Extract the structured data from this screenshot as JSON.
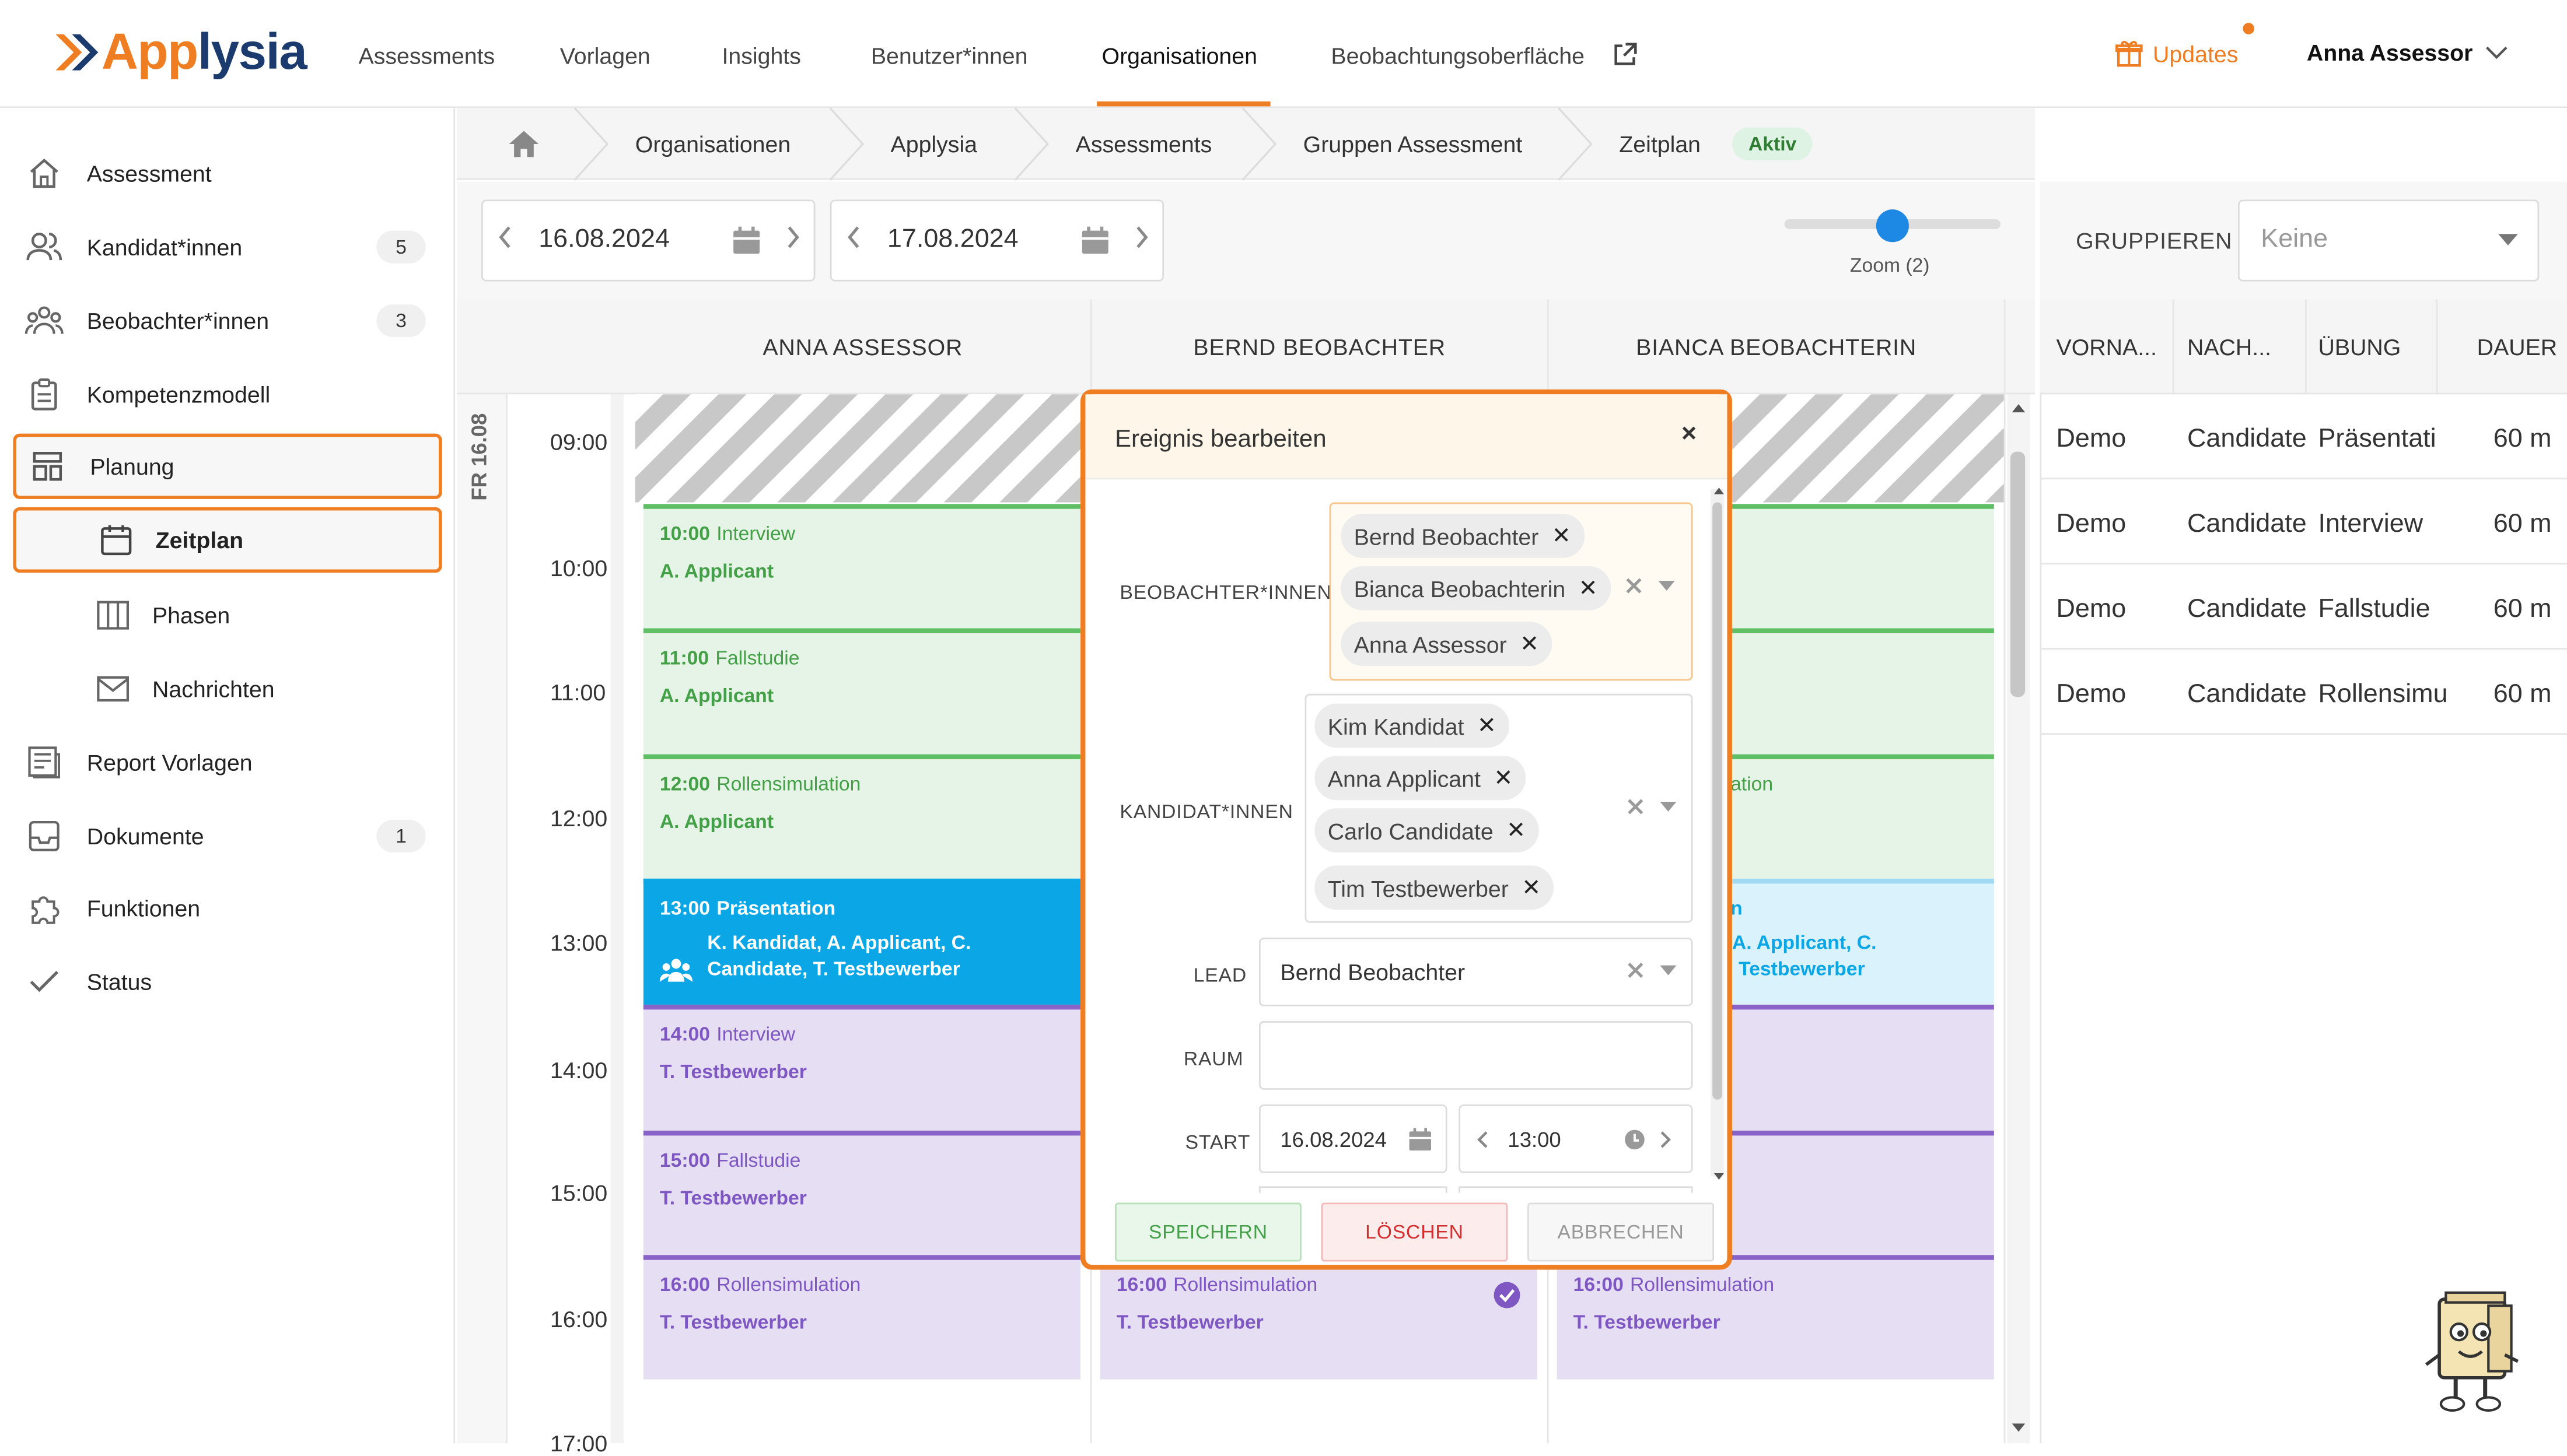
{
  "app": {
    "logo_text_a": "App",
    "logo_text_b": "lysia"
  },
  "topnav": {
    "items": [
      "Assessments",
      "Vorlagen",
      "Insights",
      "Benutzer*innen",
      "Organisationen",
      "Beobachtungsoberfläche"
    ],
    "active": "Organisationen",
    "updates_label": "Updates",
    "user_name": "Anna Assessor"
  },
  "sidebar": {
    "items": [
      {
        "label": "Assessment",
        "icon": "home-icon"
      },
      {
        "label": "Kandidat*innen",
        "icon": "users-icon",
        "badge": "5"
      },
      {
        "label": "Beobachter*innen",
        "icon": "group-icon",
        "badge": "3"
      },
      {
        "label": "Kompetenzmodell",
        "icon": "clipboard-icon"
      },
      {
        "label": "Planung",
        "icon": "layout-icon",
        "highlighted": true
      },
      {
        "label": "Zeitplan",
        "icon": "calendar-icon",
        "highlighted": true,
        "sub": true
      },
      {
        "label": "Phasen",
        "icon": "columns-icon",
        "sub": true
      },
      {
        "label": "Nachrichten",
        "icon": "mail-icon",
        "sub": true
      },
      {
        "label": "Report Vorlagen",
        "icon": "report-icon"
      },
      {
        "label": "Dokumente",
        "icon": "inbox-icon",
        "badge": "1"
      },
      {
        "label": "Funktionen",
        "icon": "puzzle-icon"
      },
      {
        "label": "Status",
        "icon": "check-icon"
      }
    ]
  },
  "breadcrumb": {
    "items": [
      "Organisationen",
      "Applysia",
      "Assessments",
      "Gruppen Assessment",
      "Zeitplan"
    ],
    "status_badge": "Aktiv"
  },
  "controls": {
    "start_date": "16.08.2024",
    "end_date": "17.08.2024",
    "zoom_label": "Zoom (2)",
    "zoom_level": 2
  },
  "calendar": {
    "day_label": "FR 16.08",
    "columns": [
      "ANNA ASSESSOR",
      "BERND BEOBACHTER",
      "BIANCA BEOBACHTERIN"
    ],
    "times": [
      "09:00",
      "10:00",
      "11:00",
      "12:00",
      "13:00",
      "14:00",
      "15:00",
      "16:00",
      "17:00"
    ],
    "events_col1": [
      {
        "time": "10:00",
        "title": "Interview",
        "names": "A. Applicant",
        "style": "green"
      },
      {
        "time": "11:00",
        "title": "Fallstudie",
        "names": "A. Applicant",
        "style": "green"
      },
      {
        "time": "12:00",
        "title": "Rollensimulation",
        "names": "A. Applicant",
        "style": "green"
      },
      {
        "time": "13:00",
        "title": "Präsentation",
        "names": "K. Kandidat, A. Applicant, C. Candidate, T. Testbewerber",
        "style": "blue"
      },
      {
        "time": "14:00",
        "title": "Interview",
        "names": "T. Testbewerber",
        "style": "purple"
      },
      {
        "time": "15:00",
        "title": "Fallstudie",
        "names": "T. Testbewerber",
        "style": "purple"
      },
      {
        "time": "16:00",
        "title": "Rollensimulation",
        "names": "T. Testbewerber",
        "style": "purple"
      }
    ],
    "events_col2": [
      {
        "time": "16:00",
        "title": "Rollensimulation",
        "names": "T. Testbewerber",
        "style": "purple"
      }
    ],
    "events_col3_partial": {
      "rollensim_fragment": "ation",
      "praes_fragment": "n",
      "praes_names_fragment_a": "A. Applicant, C.",
      "praes_names_fragment_b": "Testbewerber"
    },
    "events_col3": [
      {
        "time": "16:00",
        "title": "Rollensimulation",
        "names": "T. Testbewerber",
        "style": "purple"
      }
    ]
  },
  "right_panel": {
    "group_label": "GRUPPIEREN",
    "group_value": "Keine",
    "headers": [
      "VORNA...",
      "NACH...",
      "ÜBUNG",
      "DAUER"
    ],
    "rows": [
      [
        "Demo",
        "Candidate",
        "Präsentati",
        "60 m"
      ],
      [
        "Demo",
        "Candidate",
        "Interview",
        "60 m"
      ],
      [
        "Demo",
        "Candidate",
        "Fallstudie",
        "60 m"
      ],
      [
        "Demo",
        "Candidate",
        "Rollensimu",
        "60 m"
      ]
    ]
  },
  "modal": {
    "title": "Ereignis bearbeiten",
    "close": "×",
    "observers_label": "BEOBACHTER*INNEN",
    "observers": [
      "Bernd Beobachter",
      "Bianca Beobachterin",
      "Anna Assessor"
    ],
    "candidates_label": "KANDIDAT*INNEN",
    "candidates": [
      "Kim Kandidat",
      "Anna Applicant",
      "Carlo Candidate",
      "Tim Testbewerber"
    ],
    "lead_label": "LEAD",
    "lead_value": "Bernd Beobachter",
    "room_label": "RAUM",
    "room_value": "",
    "start_label": "START",
    "start_date": "16.08.2024",
    "start_time": "13:00",
    "save_label": "SPEICHERN",
    "delete_label": "LÖSCHEN",
    "cancel_label": "ABBRECHEN",
    "tag_remove": "✕"
  }
}
